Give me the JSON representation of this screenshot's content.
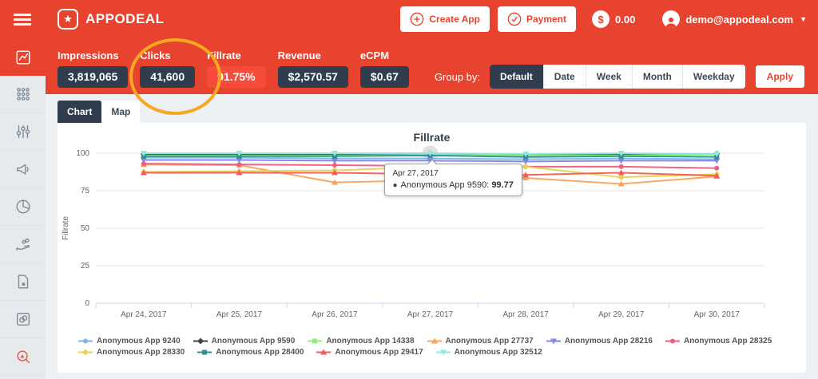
{
  "header": {
    "brand": "APPODEAL",
    "create_app_label": "Create App",
    "payment_label": "Payment",
    "balance": "0.00",
    "user_email": "demo@appodeal.com"
  },
  "metrics": {
    "items": [
      {
        "label": "Impressions",
        "value": "3,819,065",
        "active": false
      },
      {
        "label": "Clicks",
        "value": "41,600",
        "active": false
      },
      {
        "label": "Fillrate",
        "value": "91.75%",
        "active": true
      },
      {
        "label": "Revenue",
        "value": "$2,570.57",
        "active": false
      },
      {
        "label": "eCPM",
        "value": "$0.67",
        "active": false
      }
    ]
  },
  "group_by": {
    "label": "Group by:",
    "options": [
      {
        "label": "Default",
        "active": true
      },
      {
        "label": "Date",
        "active": false
      },
      {
        "label": "Week",
        "active": false
      },
      {
        "label": "Month",
        "active": false
      },
      {
        "label": "Weekday",
        "active": false
      }
    ],
    "apply_label": "Apply"
  },
  "view_tabs": [
    {
      "label": "Chart",
      "active": true
    },
    {
      "label": "Map",
      "active": false
    }
  ],
  "sidebar": {
    "items": [
      {
        "icon": "line-chart-icon",
        "active": true
      },
      {
        "icon": "apps-grid-icon",
        "active": false
      },
      {
        "icon": "sliders-icon",
        "active": false
      },
      {
        "icon": "megaphone-icon",
        "active": false
      },
      {
        "icon": "pie-chart-icon",
        "active": false
      },
      {
        "icon": "hand-coins-icon",
        "active": false
      },
      {
        "icon": "document-icon",
        "active": false
      },
      {
        "icon": "ad-units-icon",
        "active": false
      },
      {
        "icon": "search-analytics-icon",
        "active": false,
        "tint": "red"
      }
    ]
  },
  "tooltip": {
    "date": "Apr 27, 2017",
    "bullet": "●",
    "series_label": "Anonymous App 9590:",
    "value": "99.77"
  },
  "annotation": {
    "shape": "ellipse",
    "target": "Fillrate metric",
    "color": "#f6a821"
  },
  "colors": {
    "brand_red": "#e8432e",
    "highlight_red": "#f74c3c",
    "navy": "#2f3d4f",
    "grid": "#e6e6e6",
    "axis": "#ccd6eb"
  },
  "chart_data": {
    "type": "line",
    "title": "Fillrate",
    "xlabel": "",
    "ylabel": "Fillrate",
    "ylim": [
      0,
      100
    ],
    "yticks": [
      0,
      25,
      50,
      75,
      100
    ],
    "grid": true,
    "legend_position": "bottom",
    "categories": [
      "Apr 24, 2017",
      "Apr 25, 2017",
      "Apr 26, 2017",
      "Apr 27, 2017",
      "Apr 28, 2017",
      "Apr 29, 2017",
      "Apr 30, 2017"
    ],
    "hover": {
      "series_index": 1,
      "point_index": 3
    },
    "series": [
      {
        "name": "Anonymous App 9240",
        "color": "#7cb5ec",
        "symbol": "circle",
        "values": [
          97,
          97,
          96.5,
          96.5,
          96,
          96.5,
          96
        ]
      },
      {
        "name": "Anonymous App 9590",
        "color": "#434348",
        "symbol": "diamond",
        "values": [
          99.5,
          99.5,
          99,
          99.77,
          99,
          99.5,
          99.5
        ]
      },
      {
        "name": "Anonymous App 14338",
        "color": "#90ed7d",
        "symbol": "square",
        "values": [
          98.5,
          98.5,
          98.5,
          99,
          98.5,
          98.5,
          99
        ]
      },
      {
        "name": "Anonymous App 27737",
        "color": "#f7a35c",
        "symbol": "triangle",
        "values": [
          92.5,
          92,
          80.5,
          82,
          83.5,
          79.5,
          84.5
        ]
      },
      {
        "name": "Anonymous App 28216",
        "color": "#8085e9",
        "symbol": "triangle-down",
        "values": [
          95.5,
          95.5,
          95,
          95,
          94.5,
          95,
          95
        ]
      },
      {
        "name": "Anonymous App 28325",
        "color": "#f15c80",
        "symbol": "circle",
        "values": [
          93,
          92.5,
          92,
          91.5,
          91,
          91,
          90
        ]
      },
      {
        "name": "Anonymous App 28330",
        "color": "#e4d354",
        "symbol": "diamond",
        "values": [
          87.5,
          88,
          88.5,
          91,
          91,
          84,
          86
        ]
      },
      {
        "name": "Anonymous App 28400",
        "color": "#2b908f",
        "symbol": "square",
        "values": [
          98,
          98,
          98,
          98.5,
          97.5,
          98,
          97.5
        ]
      },
      {
        "name": "Anonymous App 29417",
        "color": "#f45b5b",
        "symbol": "triangle",
        "values": [
          87,
          87,
          87,
          86,
          85.5,
          87,
          85
        ]
      },
      {
        "name": "Anonymous App 32512",
        "color": "#91e8e1",
        "symbol": "triangle-down",
        "values": [
          100,
          100,
          100,
          100,
          99.5,
          100,
          99.5
        ]
      }
    ]
  }
}
